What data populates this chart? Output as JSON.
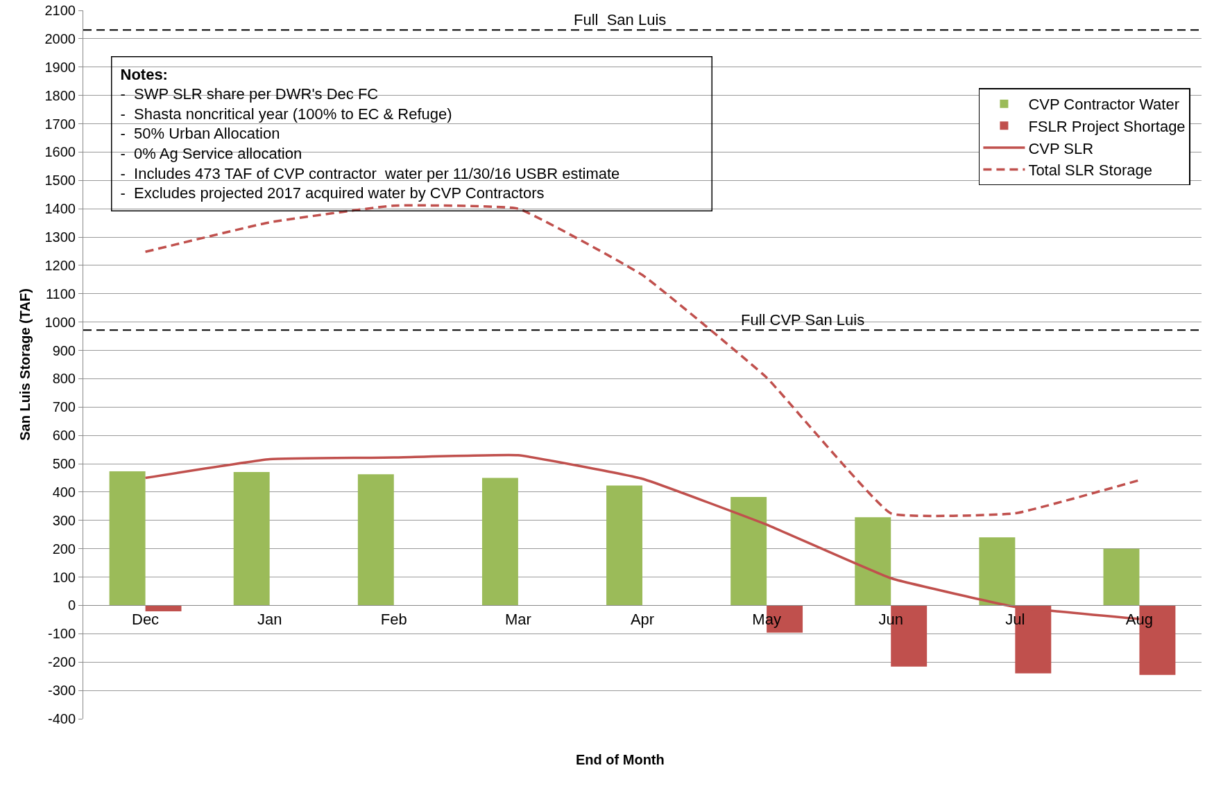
{
  "chart_data": {
    "type": "bar",
    "xlabel": "End of Month",
    "ylabel": "San Luis Storage (TAF)",
    "categories": [
      "Dec",
      "Jan",
      "Feb",
      "Mar",
      "Apr",
      "May",
      "Jun",
      "Jul",
      "Aug"
    ],
    "series": [
      {
        "name": "CVP Contractor Water",
        "color": "#9bbb59",
        "values": [
          473,
          471,
          463,
          450,
          423,
          383,
          311,
          240,
          200
        ]
      },
      {
        "name": "FSLR Project Shortage",
        "color": "#c0504d",
        "values": [
          -21,
          0,
          0,
          0,
          0,
          -96,
          -216,
          -240,
          -245
        ]
      },
      {
        "name": "CVP SLR",
        "type": "line",
        "color": "#c0504d",
        "line_style": "solid",
        "values": [
          450,
          516,
          522,
          530,
          447,
          285,
          96,
          -5,
          -48
        ]
      },
      {
        "name": "Total SLR Storage",
        "type": "line",
        "color": "#c0504d",
        "line_style": "dashed",
        "values": [
          1248,
          1352,
          1411,
          1400,
          1166,
          804,
          325,
          325,
          442
        ]
      }
    ],
    "ylim": [
      -400,
      2100
    ],
    "yticks": [
      -400,
      -300,
      -200,
      -100,
      0,
      100,
      200,
      300,
      400,
      500,
      600,
      700,
      800,
      900,
      1000,
      1100,
      1200,
      1300,
      1400,
      1500,
      1600,
      1700,
      1800,
      1900,
      2000,
      2100
    ],
    "grid": "y",
    "legend": "top right",
    "marker": "none",
    "ref_lines": [
      {
        "axis": "y",
        "value": 2031,
        "label": "Full  San Luis",
        "color": "#000000",
        "line_style": "dashed"
      },
      {
        "axis": "y",
        "value": 972,
        "label": "Full CVP San Luis",
        "color": "#000000",
        "line_style": "dashed"
      }
    ],
    "annotations": [
      "Notes:\n-  SWP SLR share per DWR's Dec FC\n-  Shasta noncritical year (100% to EC & Refuge)\n-  50% Urban Allocation\n-  0% Ag Service allocation\n-  Includes 473 TAF of CVP contractor  water per 11/30/16 USBR estimate\n-  Excludes projected 2017 acquired water by CVP Contractors"
    ]
  }
}
